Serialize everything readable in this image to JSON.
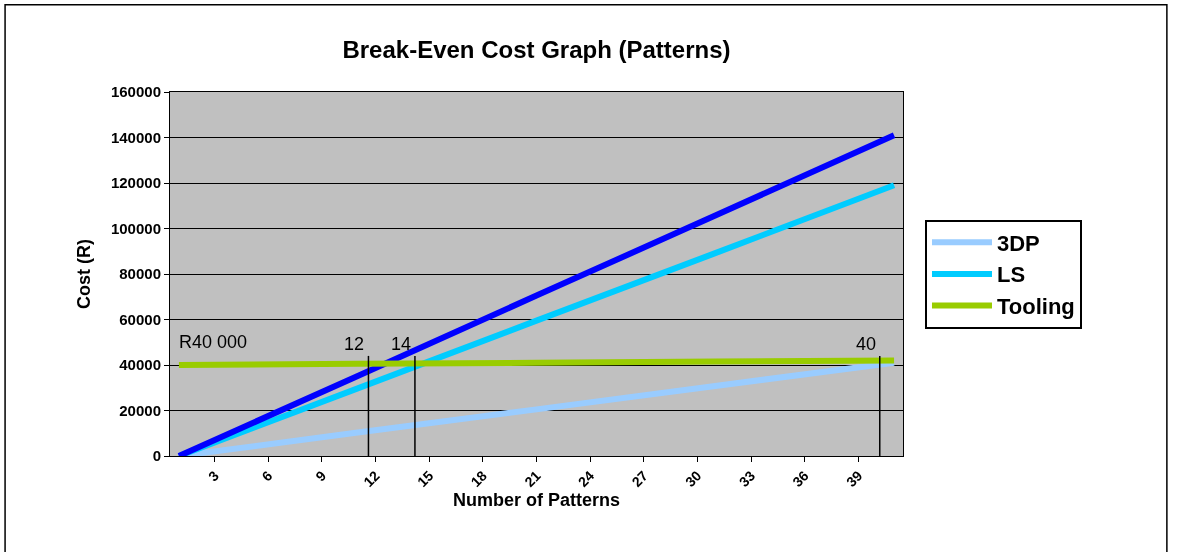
{
  "chart_data": {
    "type": "line",
    "title": "Break-Even Cost Graph (Patterns)",
    "xlabel": "Number of Patterns",
    "ylabel": "Cost (R)",
    "xlim": [
      0.5,
      41.5
    ],
    "xticks": [
      3,
      6,
      9,
      12,
      15,
      18,
      21,
      24,
      27,
      30,
      33,
      36,
      39
    ],
    "ylim": [
      0,
      160000
    ],
    "yticks": [
      0,
      20000,
      40000,
      60000,
      80000,
      100000,
      120000,
      140000,
      160000
    ],
    "grid": "y",
    "legend": "right",
    "marker": "none",
    "line_style": "solid",
    "x": [
      1,
      11,
      21,
      31,
      41
    ],
    "series": [
      {
        "name": "3DP",
        "color": "#99ccff",
        "values": [
          0,
          10300,
          20500,
          30800,
          41000
        ]
      },
      {
        "name": "LS",
        "color": "#00ccff",
        "values": [
          0,
          29700,
          59500,
          89200,
          119000
        ]
      },
      {
        "color": "#0000ff",
        "values": [
          0,
          35200,
          70500,
          105700,
          141000
        ]
      },
      {
        "name": "Tooling",
        "color": "#99cc00",
        "values": [
          40000,
          40500,
          41000,
          41500,
          42000
        ]
      }
    ],
    "annotations": [
      "R40 000",
      {
        "text": "12",
        "x": 11.6,
        "y": 44000
      },
      {
        "text": "14",
        "x": 14.2,
        "y": 44000
      },
      {
        "text": "40",
        "x": 40.2,
        "y": 44000
      }
    ]
  }
}
